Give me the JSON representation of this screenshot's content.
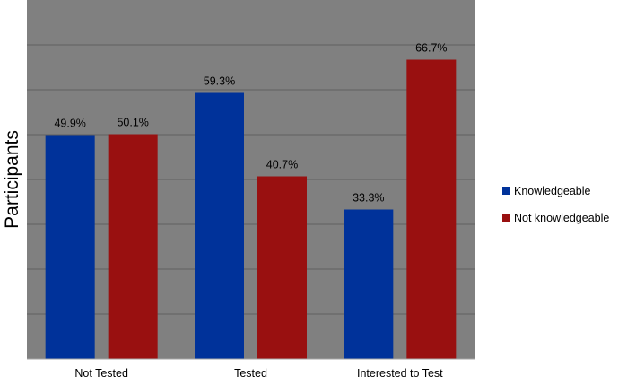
{
  "chart_data": {
    "type": "bar",
    "ylabel": "Participants",
    "categories": [
      "Not Tested",
      "Tested",
      "Interested to Test"
    ],
    "series": [
      {
        "name": "Knowledgeable",
        "color": "#00329a",
        "values": [
          49.9,
          59.3,
          33.3
        ],
        "labels": [
          "49.9%",
          "59.3%",
          "33.3%"
        ]
      },
      {
        "name": "Not knowledgeable",
        "color": "#991010",
        "values": [
          50.1,
          40.7,
          66.7
        ],
        "labels": [
          "50.1%",
          "40.7%",
          "66.7%"
        ]
      }
    ],
    "ylim": [
      0,
      80
    ],
    "grid": true,
    "gridlines": 8,
    "plot_background": "#808080",
    "legend": "right"
  }
}
